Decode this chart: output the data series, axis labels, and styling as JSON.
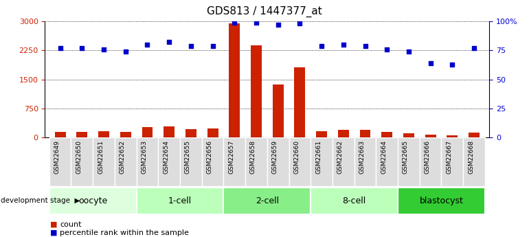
{
  "title": "GDS813 / 1447377_at",
  "samples": [
    "GSM22649",
    "GSM22650",
    "GSM22651",
    "GSM22652",
    "GSM22653",
    "GSM22654",
    "GSM22655",
    "GSM22656",
    "GSM22657",
    "GSM22658",
    "GSM22659",
    "GSM22660",
    "GSM22661",
    "GSM22662",
    "GSM22663",
    "GSM22664",
    "GSM22665",
    "GSM22666",
    "GSM22667",
    "GSM22668"
  ],
  "counts": [
    150,
    150,
    170,
    150,
    260,
    290,
    220,
    240,
    2950,
    2380,
    1370,
    1820,
    160,
    195,
    195,
    140,
    110,
    65,
    55,
    130
  ],
  "percentiles": [
    77,
    77,
    76,
    74,
    80,
    82,
    79,
    79,
    99,
    99,
    97,
    98,
    79,
    80,
    79,
    76,
    74,
    64,
    63,
    77
  ],
  "groups": [
    {
      "label": "oocyte",
      "start": 0,
      "end": 4,
      "color": "#ddffdd"
    },
    {
      "label": "1-cell",
      "start": 4,
      "end": 8,
      "color": "#bbffbb"
    },
    {
      "label": "2-cell",
      "start": 8,
      "end": 12,
      "color": "#88ee88"
    },
    {
      "label": "8-cell",
      "start": 12,
      "end": 16,
      "color": "#bbffbb"
    },
    {
      "label": "blastocyst",
      "start": 16,
      "end": 20,
      "color": "#33cc33"
    }
  ],
  "left_ylim": [
    0,
    3000
  ],
  "right_ylim": [
    0,
    100
  ],
  "left_yticks": [
    0,
    750,
    1500,
    2250,
    3000
  ],
  "right_yticks": [
    0,
    25,
    50,
    75,
    100
  ],
  "right_yticklabels": [
    "0",
    "25",
    "50",
    "75",
    "100%"
  ],
  "bar_color": "#cc2200",
  "dot_color": "#0000cc",
  "left_tick_color": "#cc2200",
  "right_tick_color": "#0000cc",
  "bg_color": "#ffffff",
  "title_fontsize": 11,
  "tick_fontsize": 8,
  "group_fontsize": 9,
  "sample_fontsize": 6.5
}
